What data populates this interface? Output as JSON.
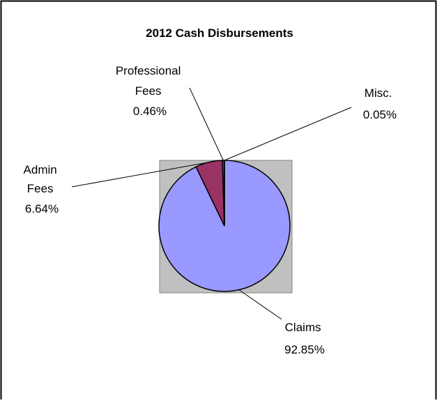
{
  "chart_data": {
    "type": "pie",
    "title": "2012 Cash Disbursements",
    "legend": "none",
    "slices": [
      {
        "name": "Claims",
        "value": 92.85,
        "label_lines": [
          "Claims",
          "92.85%"
        ],
        "color": "#9999ff"
      },
      {
        "name": "Admin Fees",
        "value": 6.64,
        "label_lines": [
          "Admin",
          "Fees",
          "6.64%"
        ],
        "color": "#993366"
      },
      {
        "name": "Professional Fees",
        "value": 0.46,
        "label_lines": [
          "Professional",
          "Fees",
          "0.46%"
        ],
        "color": "#993366"
      },
      {
        "name": "Misc.",
        "value": 0.05,
        "label_lines": [
          "Misc.",
          "0.05%"
        ],
        "color": "#993366"
      }
    ],
    "plot_area_color": "#c0c0c0"
  }
}
